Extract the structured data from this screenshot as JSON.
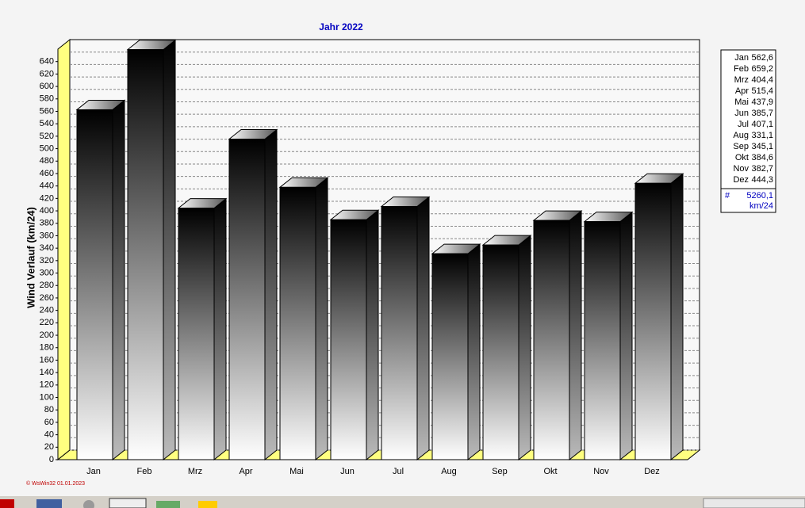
{
  "chart_data": {
    "type": "bar3d",
    "title": "Jahr  2022",
    "y_label": "Wind Verlauf  (km/24)",
    "categories": [
      "Jan",
      "Feb",
      "Mrz",
      "Apr",
      "Mai",
      "Jun",
      "Jul",
      "Aug",
      "Sep",
      "Okt",
      "Nov",
      "Dez"
    ],
    "values": [
      562.6,
      659.2,
      404.4,
      515.4,
      437.9,
      385.7,
      407.1,
      331.1,
      345.1,
      384.6,
      382.7,
      444.3
    ],
    "value_labels": [
      "562,6",
      "659,2",
      "404,4",
      "515,4",
      "437,9",
      "385,7",
      "407,1",
      "331,1",
      "345,1",
      "384,6",
      "382,7",
      "444,3"
    ],
    "ylim": [
      0,
      660
    ],
    "yticks": [
      0,
      20,
      40,
      60,
      80,
      100,
      120,
      140,
      160,
      180,
      200,
      220,
      240,
      260,
      280,
      300,
      320,
      340,
      360,
      380,
      400,
      420,
      440,
      460,
      480,
      500,
      520,
      540,
      560,
      580,
      600,
      620,
      640
    ],
    "grid": true,
    "legend": {
      "symbol": "#",
      "total": "5260,1",
      "unit": "km/24"
    },
    "footer": "© WsWin32  01.01.2023"
  }
}
